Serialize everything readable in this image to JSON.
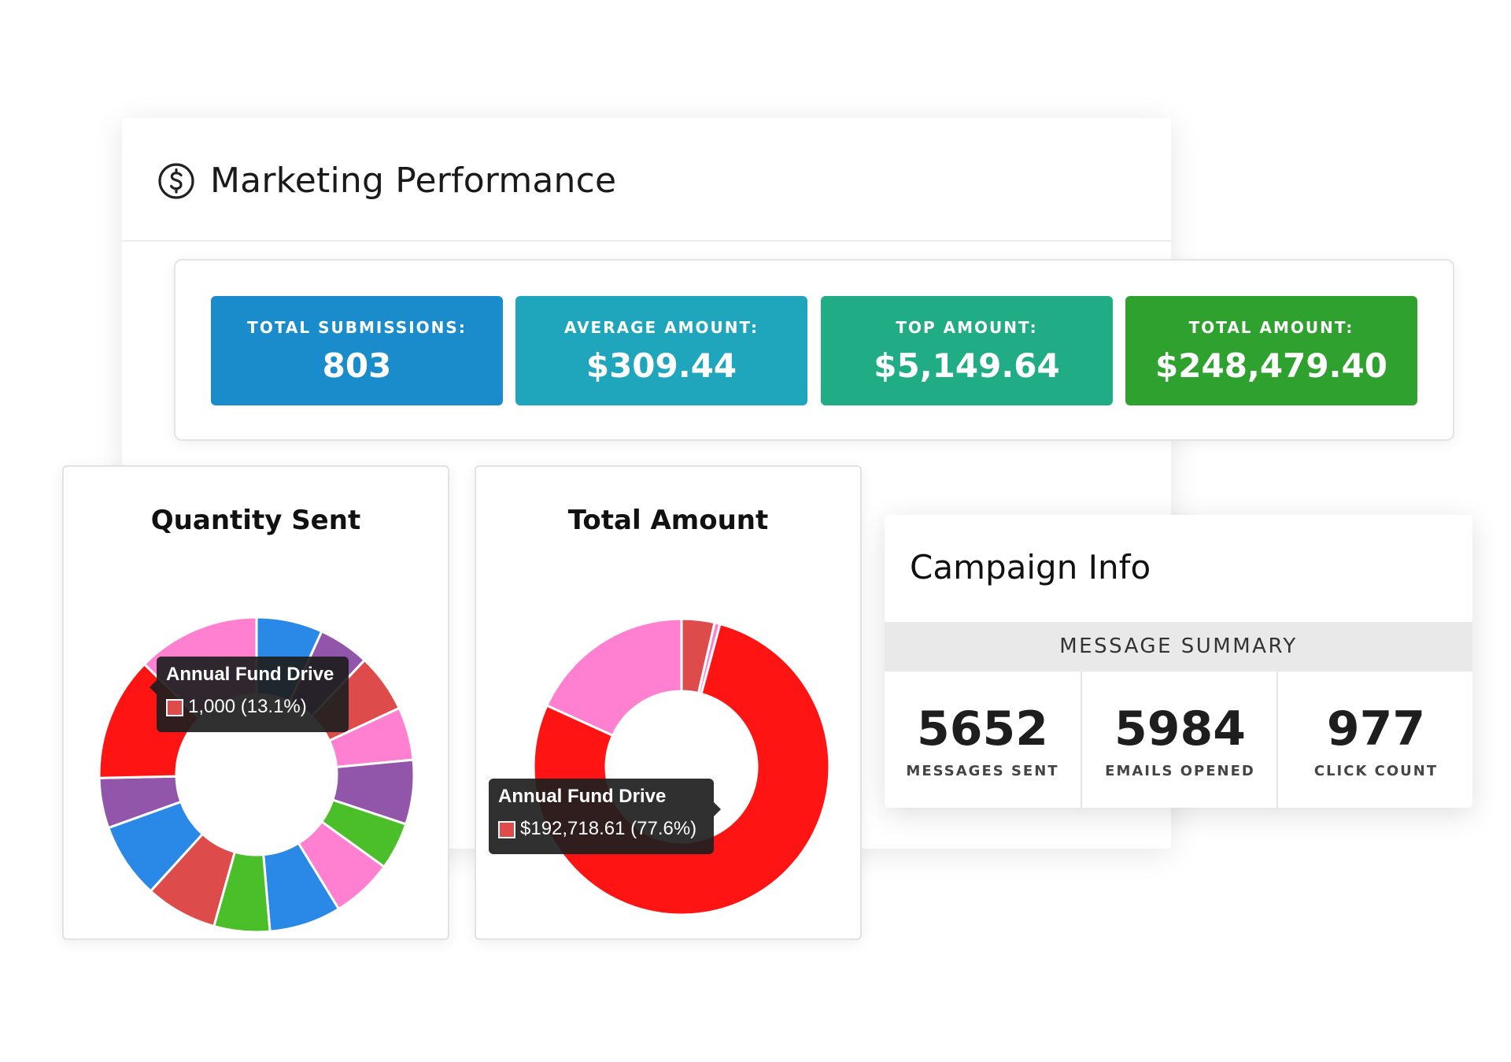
{
  "header": {
    "title": "Marketing Performance",
    "icon": "dollar-circle-icon"
  },
  "kpis": [
    {
      "label": "TOTAL SUBMISSIONS:",
      "value": "803",
      "color": "#1a8ccc"
    },
    {
      "label": "AVERAGE AMOUNT:",
      "value": "$309.44",
      "color": "#1fa6bd"
    },
    {
      "label": "TOP AMOUNT:",
      "value": "$5,149.64",
      "color": "#20ad86"
    },
    {
      "label": "TOTAL AMOUNT:",
      "value": "$248,479.40",
      "color": "#2fa12f"
    }
  ],
  "chart_data": [
    {
      "type": "pie",
      "variant": "doughnut",
      "title": "Quantity Sent",
      "slices": [
        {
          "value": 7.0,
          "color": "#2a88e6"
        },
        {
          "value": 5.4,
          "color": "#9155aa"
        },
        {
          "value": 6.2,
          "color": "#dd4b4b"
        },
        {
          "value": 5.6,
          "color": "#ff80d0"
        },
        {
          "value": 6.8,
          "color": "#9155aa"
        },
        {
          "value": 5.0,
          "color": "#4bbf2a"
        },
        {
          "value": 6.5,
          "color": "#ff80d0"
        },
        {
          "value": 7.6,
          "color": "#2a88e6"
        },
        {
          "value": 5.9,
          "color": "#4bbf2a"
        },
        {
          "value": 7.6,
          "color": "#dd4b4b"
        },
        {
          "value": 8.0,
          "color": "#2a88e6"
        },
        {
          "value": 5.3,
          "color": "#9155aa"
        },
        {
          "value": 13.1,
          "color": "#ff1414"
        },
        {
          "value": 13.0,
          "color": "#ff80d0"
        }
      ],
      "tooltip": {
        "label": "Annual Fund Drive",
        "value": "1,000 (13.1%)",
        "swatch": "#dd4b4b"
      }
    },
    {
      "type": "pie",
      "variant": "doughnut",
      "title": "Total Amount",
      "slices": [
        {
          "value": 3.6,
          "color": "#dd4b4b"
        },
        {
          "value": 0.6,
          "color": "#ff80d0"
        },
        {
          "value": 77.6,
          "color": "#ff1414"
        },
        {
          "value": 18.2,
          "color": "#ff80d0"
        }
      ],
      "tooltip": {
        "label": "Annual Fund Drive",
        "value": "$192,718.61 (77.6%)",
        "swatch": "#dd4b4b"
      }
    }
  ],
  "campaign": {
    "title": "Campaign Info",
    "summary_label": "MESSAGE SUMMARY",
    "stats": [
      {
        "value": "5652",
        "label": "MESSAGES SENT"
      },
      {
        "value": "5984",
        "label": "EMAILS OPENED"
      },
      {
        "value": "977",
        "label": "CLICK COUNT"
      }
    ]
  }
}
